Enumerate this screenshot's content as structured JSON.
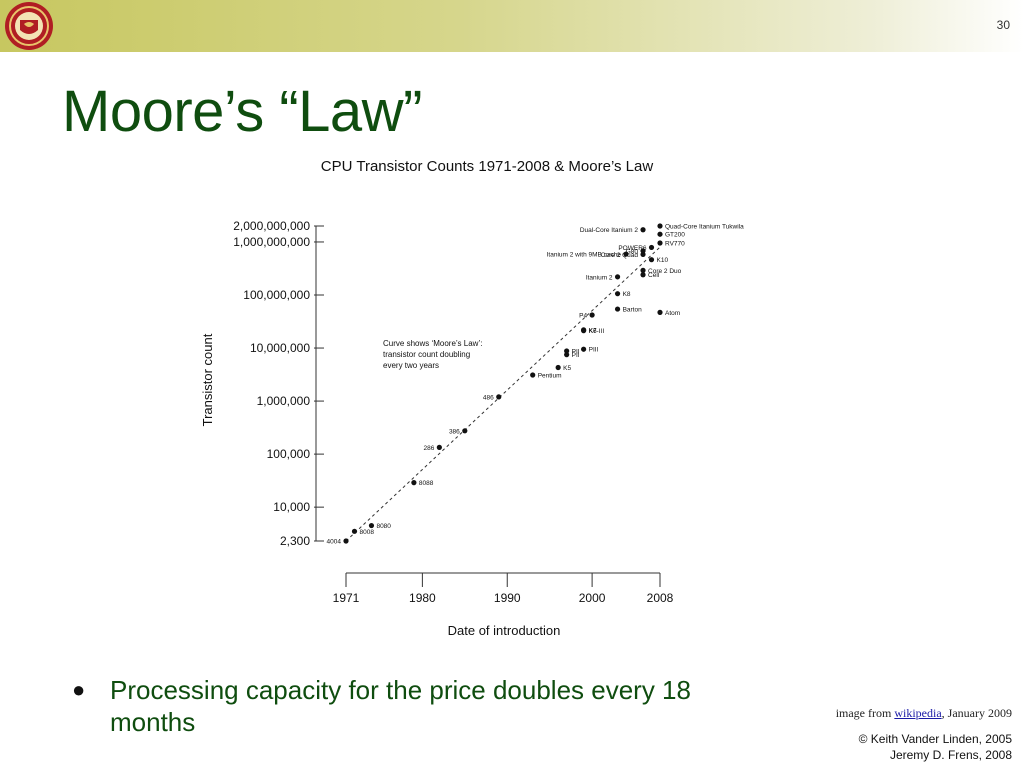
{
  "slide": {
    "number": "30",
    "title": "Moore’s “Law”"
  },
  "logo": {
    "icon": "university-seal-icon",
    "colors": [
      "#b01e23",
      "#e9c46a"
    ]
  },
  "bullet": {
    "text": "Processing capacity for the price doubles every 18 months"
  },
  "source": {
    "prefix": "image from ",
    "link": "wikipedia",
    "suffix": ", January 2009"
  },
  "copyright": {
    "line1": "© Keith Vander Linden, 2005",
    "line2": "Jeremy D. Frens, 2008"
  },
  "chart_data": {
    "type": "scatter",
    "title": "CPU Transistor Counts 1971-2008 & Moore’s Law",
    "xlabel": "Date of introduction",
    "ylabel": "Transistor count",
    "y_scale": "log",
    "xlim": [
      1971,
      2008
    ],
    "ylim": [
      2300,
      2000000000
    ],
    "x_ticks": [
      1971,
      1980,
      1990,
      2000,
      2008
    ],
    "x_tick_labels": [
      "1971",
      "1980",
      "1990",
      "2000",
      "2008"
    ],
    "y_ticks": [
      2300,
      10000,
      100000,
      1000000,
      10000000,
      100000000,
      1000000000,
      2000000000
    ],
    "y_tick_labels": [
      "2,300",
      "10,000",
      "100,000",
      "1,000,000",
      "10,000,000",
      "100,000,000",
      "1,000,000,000",
      "2,000,000,000"
    ],
    "annotation": [
      "Curve shows ‘Moore’s Law’:",
      "transistor count doubling",
      "every two years"
    ],
    "trend": {
      "x": [
        1971,
        2008
      ],
      "y": [
        2300,
        800000000
      ]
    },
    "grid": false,
    "points": [
      {
        "label": "4004",
        "x": 1971,
        "y": 2300,
        "label_side": "left"
      },
      {
        "label": "8008",
        "x": 1972,
        "y": 3500,
        "label_side": "right"
      },
      {
        "label": "8080",
        "x": 1974,
        "y": 4500,
        "label_side": "right"
      },
      {
        "label": "8088",
        "x": 1979,
        "y": 29000,
        "label_side": "right"
      },
      {
        "label": "286",
        "x": 1982,
        "y": 134000,
        "label_side": "left"
      },
      {
        "label": "386",
        "x": 1985,
        "y": 275000,
        "label_side": "left"
      },
      {
        "label": "486",
        "x": 1989,
        "y": 1200000,
        "label_side": "left"
      },
      {
        "label": "Pentium",
        "x": 1993,
        "y": 3100000,
        "label_side": "right"
      },
      {
        "label": "K5",
        "x": 1996,
        "y": 4300000,
        "label_side": "right"
      },
      {
        "label": "PII",
        "x": 1997,
        "y": 7500000,
        "label_side": "right"
      },
      {
        "label": "PII",
        "x": 1997,
        "y": 8800000,
        "label_side": "right"
      },
      {
        "label": "PIII",
        "x": 1999,
        "y": 9500000,
        "label_side": "right"
      },
      {
        "label": "K6-III",
        "x": 1999,
        "y": 21300000,
        "label_side": "right"
      },
      {
        "label": "K7",
        "x": 1999,
        "y": 22000000,
        "label_side": "right"
      },
      {
        "label": "P4",
        "x": 2000,
        "y": 42000000,
        "label_side": "left"
      },
      {
        "label": "Barton",
        "x": 2003,
        "y": 54300000,
        "label_side": "right"
      },
      {
        "label": "Atom",
        "x": 2008,
        "y": 47000000,
        "label_side": "right"
      },
      {
        "label": "K8",
        "x": 2003,
        "y": 105900000,
        "label_side": "right"
      },
      {
        "label": "Itanium 2",
        "x": 2003,
        "y": 220000000,
        "label_side": "left"
      },
      {
        "label": "Cell",
        "x": 2006,
        "y": 241000000,
        "label_side": "right"
      },
      {
        "label": "Core 2 Duo",
        "x": 2006,
        "y": 291000000,
        "label_side": "right"
      },
      {
        "label": "Core 2 Quad",
        "x": 2006,
        "y": 582000000,
        "label_side": "left"
      },
      {
        "label": "K10",
        "x": 2007,
        "y": 463000000,
        "label_side": "right"
      },
      {
        "label": "Itanium 2 with 9MB cache",
        "x": 2004,
        "y": 592000000,
        "label_side": "left"
      },
      {
        "label": "G80",
        "x": 2006,
        "y": 681000000,
        "label_side": "left"
      },
      {
        "label": "RV770",
        "x": 2008,
        "y": 956000000,
        "label_side": "right"
      },
      {
        "label": "POWER6",
        "x": 2007,
        "y": 789000000,
        "label_side": "left"
      },
      {
        "label": "GT200",
        "x": 2008,
        "y": 1400000000,
        "label_side": "right"
      },
      {
        "label": "Dual-Core Itanium 2",
        "x": 2006,
        "y": 1700000000,
        "label_side": "left"
      },
      {
        "label": "Quad-Core Itanium Tukwila",
        "x": 2008,
        "y": 2000000000,
        "label_side": "right"
      }
    ]
  }
}
